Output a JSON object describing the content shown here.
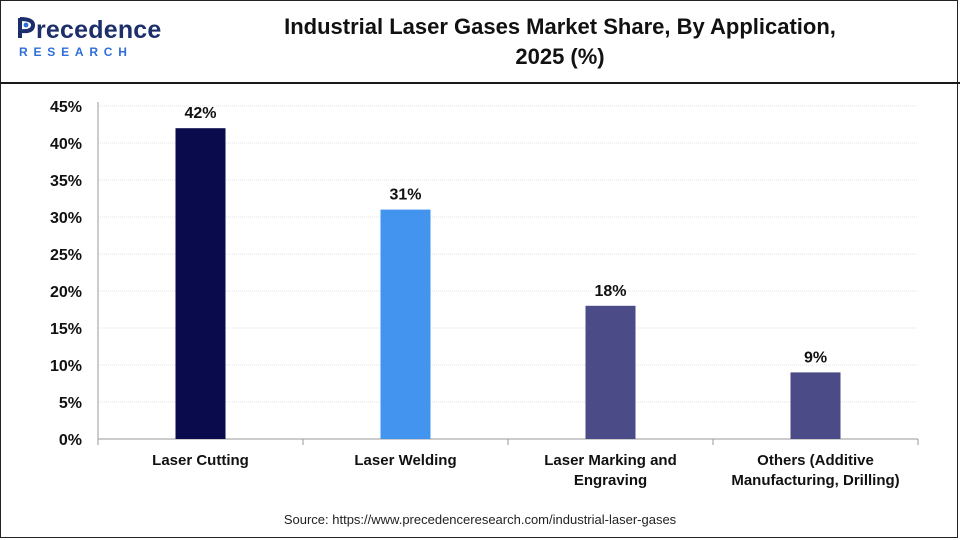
{
  "brand": {
    "name": "recedence",
    "sub": "RESEARCH",
    "colors": {
      "primary": "#1c2f6b",
      "accent": "#2e6fd8"
    }
  },
  "title_line1": "Industrial Laser Gases Market Share, By Application,",
  "title_line2": "2025 (%)",
  "source": "Source: https://www.precedenceresearch.com/industrial-laser-gases",
  "chart_data": {
    "type": "bar",
    "title": "Industrial Laser Gases Market Share, By Application, 2025 (%)",
    "xlabel": "",
    "ylabel": "",
    "ylim": [
      0,
      45
    ],
    "yticks": [
      0,
      5,
      10,
      15,
      20,
      25,
      30,
      35,
      40,
      45
    ],
    "ytick_labels": [
      "0%",
      "5%",
      "10%",
      "15%",
      "20%",
      "25%",
      "30%",
      "35%",
      "40%",
      "45%"
    ],
    "grid": true,
    "legend": "none",
    "categories": [
      [
        "Laser Cutting"
      ],
      [
        "Laser Welding"
      ],
      [
        "Laser Marking and",
        "Engraving"
      ],
      [
        "Others (Additive",
        "Manufacturing, Drilling)"
      ]
    ],
    "values": [
      42,
      31,
      18,
      9
    ],
    "data_labels": [
      "42%",
      "31%",
      "18%",
      "9%"
    ],
    "colors": [
      "#0a0b4d",
      "#4394ef",
      "#4b4b87",
      "#4b4b87"
    ]
  }
}
